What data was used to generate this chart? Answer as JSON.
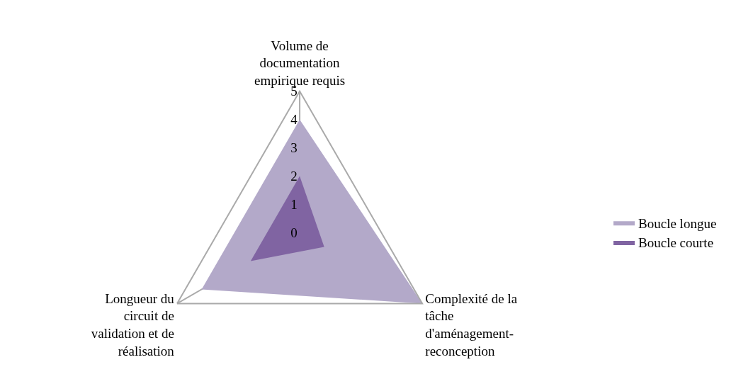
{
  "chart_data": {
    "type": "radar",
    "categories": [
      "Volume de\ndocumentation\nempirique requis",
      "Complexité de la\ntâche\nd'aménagement-\nreconception",
      "Longueur du\ncircuit de\nvalidation et de\nréalisation"
    ],
    "series": [
      {
        "name": "Boucle longue",
        "color": "#b3a9c9",
        "values": [
          4,
          5,
          4
        ]
      },
      {
        "name": "Boucle courte",
        "color": "#8064a2",
        "values": [
          2,
          1,
          2
        ]
      }
    ],
    "ylim": [
      0,
      5
    ],
    "yticks": [
      0,
      1,
      2,
      3,
      4,
      5
    ],
    "grid": "x",
    "legend": "right"
  }
}
